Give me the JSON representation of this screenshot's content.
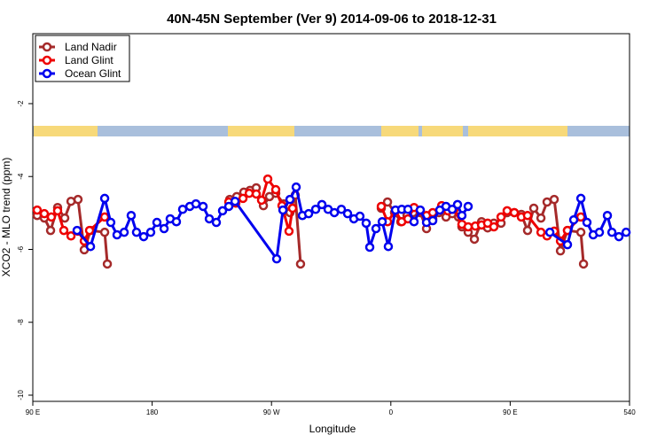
{
  "chart_data": {
    "type": "line",
    "title": "40N-45N September (Ver 9)   2014-09-06 to 2018-12-31",
    "x_label": "Longitude",
    "y_label": "XCO2 - MLO trend (ppm)",
    "xlim": [
      90,
      540
    ],
    "xticks": [
      {
        "value": 90,
        "label": "90 E"
      },
      180,
      {
        "value": 270,
        "label": "90 W"
      },
      {
        "value": 360,
        "label": "0"
      },
      {
        "value": 450,
        "label": "90 E"
      },
      540
    ],
    "ylim": [
      -10.17,
      -0.08
    ],
    "yticks": [
      -2,
      -4,
      -6,
      -8,
      -10
    ],
    "legend": "top-left",
    "series": [
      {
        "name": "Land Nadir",
        "color": "#a52a2a",
        "x": [
          93.3,
          98.7,
          103.4,
          108.7,
          114.1,
          118.8,
          124.1,
          128.8,
          133.5,
          144.2,
          146.2,
          190,
          238.5,
          243.8,
          249.1,
          253.8,
          258.5,
          263.9,
          268.5,
          273.2,
          279.2,
          283.9,
          287.9,
          291.9,
          320,
          352.8,
          357.5,
          362.8,
          367.5,
          372.2,
          376.9,
          382.2,
          386.9,
          391.6,
          396.3,
          401.6,
          406.3,
          411.0,
          413.6,
          418.3,
          423.0,
          428.4,
          433.0,
          437.7,
          443.1,
          447.7,
          453.1,
          458.4,
          463.1,
          467.8,
          473.2,
          477.8,
          483.2,
          487.9,
          493.2,
          503.3,
          505.3
        ],
        "values": [
          -5.07,
          -5.14,
          -5.48,
          -4.85,
          -5.14,
          -4.68,
          -4.63,
          -6.01,
          -5.48,
          -5.53,
          -6.4,
          null,
          -4.63,
          -4.55,
          -4.43,
          -4.38,
          -4.31,
          -4.8,
          -4.55,
          -4.46,
          -4.75,
          -4.99,
          -4.51,
          -6.4,
          null,
          -4.87,
          -4.7,
          -4.99,
          -5.24,
          -5.07,
          -4.99,
          -4.99,
          -5.43,
          -5.16,
          -4.99,
          -5.11,
          -5.02,
          -5.11,
          -5.38,
          -5.53,
          -5.72,
          -5.24,
          -5.41,
          -5.28,
          -5.28,
          -4.99,
          -4.99,
          -5.04,
          -5.48,
          -4.87,
          -5.14,
          -4.7,
          -4.63,
          -6.04,
          -5.48,
          -5.53,
          -6.4
        ]
      },
      {
        "name": "Land Glint",
        "color": "#ee0000",
        "x": [
          93.3,
          98.7,
          104.0,
          108.7,
          113.4,
          118.8,
          124.1,
          128.8,
          132.8,
          144.2,
          190,
          237.8,
          243.1,
          248.5,
          253.2,
          258.5,
          262.5,
          267.2,
          273.2,
          277.9,
          283.2,
          285.9,
          320,
          352.8,
          357.5,
          363.5,
          368.2,
          372.9,
          377.5,
          382.2,
          386.9,
          391.6,
          398.3,
          403.0,
          407.6,
          413.6,
          418.3,
          423.7,
          428.4,
          433.0,
          437.7,
          443.1,
          447.7,
          453.1,
          458.4,
          463.1,
          473.2,
          477.8,
          483.2,
          487.9,
          493.2,
          503.3
        ],
        "values": [
          -4.92,
          -5.02,
          -5.11,
          -4.94,
          -5.48,
          -5.63,
          -5.5,
          -5.77,
          -5.48,
          -5.11,
          null,
          -4.7,
          -4.73,
          -4.6,
          -4.46,
          -4.48,
          -4.65,
          -4.07,
          -4.36,
          -4.8,
          -5.5,
          -4.87,
          null,
          -4.82,
          -5.24,
          -4.94,
          -5.24,
          -5.16,
          -4.85,
          -4.94,
          -5.07,
          -4.99,
          -4.8,
          -4.94,
          -4.9,
          -5.31,
          -5.38,
          -5.36,
          -5.33,
          -5.28,
          -5.38,
          -5.11,
          -4.94,
          -4.99,
          -5.11,
          -5.07,
          -5.53,
          -5.63,
          -5.5,
          -5.77,
          -5.48,
          -5.11
        ]
      },
      {
        "name": "Ocean Glint",
        "color": "#0000ee",
        "x": [
          123.4,
          133.5,
          144.2,
          148.8,
          153.5,
          158.9,
          164.2,
          168.2,
          173.6,
          178.9,
          183.6,
          189.0,
          193.6,
          198.3,
          203.0,
          208.4,
          213.0,
          218.4,
          223.1,
          228.4,
          233.1,
          237.8,
          242.5,
          273.9,
          278.6,
          283.9,
          288.6,
          293.3,
          298.0,
          303.3,
          308.0,
          312.7,
          317.4,
          322.7,
          327.4,
          332.1,
          336.7,
          341.4,
          344.1,
          348.8,
          353.5,
          358.1,
          363.5,
          368.2,
          372.9,
          377.5,
          382.2,
          386.9,
          391.6,
          396.9,
          401.6,
          406.3,
          410.3,
          413.6,
          418.3,
          450,
          479.9,
          493.2,
          497.9,
          503.3,
          507.9,
          512.6,
          517.3,
          523.3,
          526.7,
          532.0,
          537.4
        ],
        "values": [
          -5.48,
          -5.92,
          -4.6,
          -5.26,
          -5.6,
          -5.53,
          -5.07,
          -5.53,
          -5.65,
          -5.53,
          -5.26,
          -5.43,
          -5.16,
          -5.24,
          -4.9,
          -4.82,
          -4.75,
          -4.82,
          -5.16,
          -5.26,
          -4.94,
          -4.82,
          -4.68,
          -6.26,
          -4.92,
          -4.63,
          -4.29,
          -5.07,
          -5.02,
          -4.9,
          -4.77,
          -4.9,
          -4.99,
          -4.9,
          -5.02,
          -5.16,
          -5.09,
          -5.28,
          -5.94,
          -5.43,
          -5.24,
          -5.92,
          -4.92,
          -4.9,
          -4.9,
          -5.24,
          -4.92,
          -5.26,
          -5.21,
          -4.92,
          -4.82,
          -4.9,
          -4.77,
          -5.07,
          -4.82,
          null,
          -5.53,
          -5.87,
          -5.19,
          -4.6,
          -5.26,
          -5.6,
          -5.53,
          -5.07,
          -5.53,
          -5.65,
          -5.53
        ]
      }
    ]
  }
}
